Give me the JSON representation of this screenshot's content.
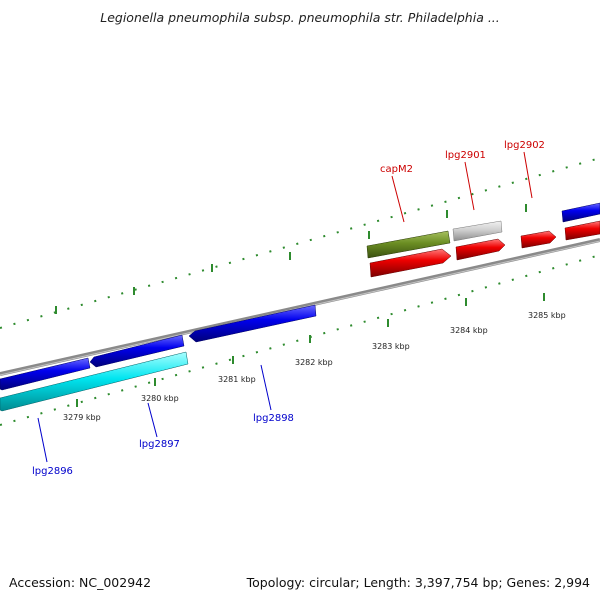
{
  "title": "Legionella pneumophila subsp. pneumophila str. Philadelphia ...",
  "footer": {
    "accession": "Accession: NC_002942",
    "summary": "Topology: circular; Length: 3,397,754 bp; Genes: 2,994"
  },
  "colors": {
    "backbone": "#8a8a8a",
    "tick": "#2e8b2e",
    "forward_gene": "#0000ee",
    "reverse_gene": "#ee0000",
    "highlight_gene": "#00e5f0",
    "olive_gene": "#6b8e23",
    "grey_gene": "#c8c8c8",
    "label_blue": "#0000cc",
    "label_red": "#cc0000"
  },
  "scale_labels": [
    "3279 kbp",
    "3280 kbp",
    "3281 kbp",
    "3282 kbp",
    "3283 kbp",
    "3284 kbp",
    "3285 kbp"
  ],
  "gene_labels": {
    "lpg2896": "lpg2896",
    "lpg2897": "lpg2897",
    "lpg2898": "lpg2898",
    "capM2": "capM2",
    "lpg2901": "lpg2901",
    "lpg2902": "lpg2902"
  }
}
